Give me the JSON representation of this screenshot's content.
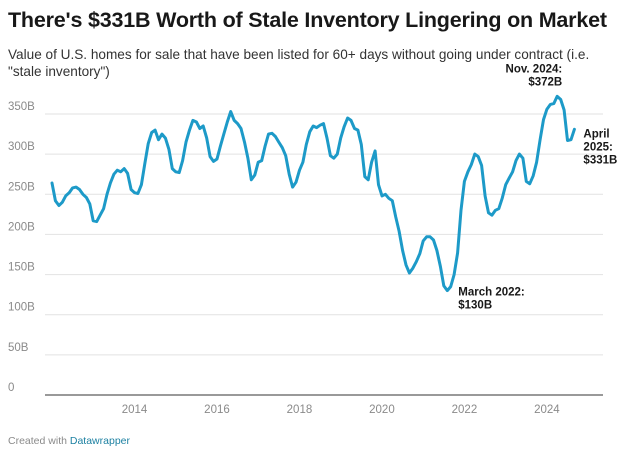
{
  "header": {
    "title": "There's $331B Worth of Stale Inventory Lingering on Market",
    "subtitle": "Value of U.S. homes for sale that have been listed for 60+ days without going under contract (i.e. \"stale inventory\")"
  },
  "footer": {
    "created_with": "Created with",
    "tool": "Datawrapper"
  },
  "chart_data": {
    "type": "line",
    "title": "There's $331B Worth of Stale Inventory Lingering on Market",
    "subtitle": "Value of U.S. homes for sale that have been listed for 60+ days without going under contract (i.e. \"stale inventory\")",
    "xlabel": "",
    "ylabel": "",
    "ylim": [
      0,
      350
    ],
    "xlim": [
      "2012-01",
      "2025-04"
    ],
    "grid": true,
    "legend": "none",
    "line_color": "#1d9ac8",
    "y_ticks": [
      0,
      50,
      100,
      150,
      200,
      250,
      300,
      350
    ],
    "y_tick_labels": [
      "0",
      "50B",
      "100B",
      "150B",
      "200B",
      "250B",
      "300B",
      "350B"
    ],
    "x_ticks": [
      "2014-01",
      "2016-01",
      "2018-01",
      "2020-01",
      "2022-01",
      "2024-01"
    ],
    "x_tick_labels": [
      "2014",
      "2016",
      "2018",
      "2020",
      "2022",
      "2024"
    ],
    "series": [
      {
        "points": [
          [
            "2012-01",
            264
          ],
          [
            "2012-02",
            242
          ],
          [
            "2012-03",
            236
          ],
          [
            "2012-04",
            240
          ],
          [
            "2012-05",
            248
          ],
          [
            "2012-06",
            252
          ],
          [
            "2012-07",
            258
          ],
          [
            "2012-08",
            259
          ],
          [
            "2012-09",
            256
          ],
          [
            "2012-10",
            250
          ],
          [
            "2012-11",
            246
          ],
          [
            "2012-12",
            238
          ],
          [
            "2013-01",
            217
          ],
          [
            "2013-02",
            216
          ],
          [
            "2013-03",
            224
          ],
          [
            "2013-04",
            232
          ],
          [
            "2013-05",
            250
          ],
          [
            "2013-06",
            264
          ],
          [
            "2013-07",
            275
          ],
          [
            "2013-08",
            280
          ],
          [
            "2013-09",
            278
          ],
          [
            "2013-10",
            282
          ],
          [
            "2013-11",
            276
          ],
          [
            "2013-12",
            256
          ],
          [
            "2014-01",
            252
          ],
          [
            "2014-02",
            251
          ],
          [
            "2014-03",
            262
          ],
          [
            "2014-04",
            288
          ],
          [
            "2014-05",
            313
          ],
          [
            "2014-06",
            327
          ],
          [
            "2014-07",
            330
          ],
          [
            "2014-08",
            318
          ],
          [
            "2014-09",
            325
          ],
          [
            "2014-10",
            320
          ],
          [
            "2014-11",
            306
          ],
          [
            "2014-12",
            282
          ],
          [
            "2015-01",
            278
          ],
          [
            "2015-02",
            277
          ],
          [
            "2015-03",
            292
          ],
          [
            "2015-04",
            315
          ],
          [
            "2015-05",
            330
          ],
          [
            "2015-06",
            342
          ],
          [
            "2015-07",
            340
          ],
          [
            "2015-08",
            332
          ],
          [
            "2015-09",
            335
          ],
          [
            "2015-10",
            320
          ],
          [
            "2015-11",
            297
          ],
          [
            "2015-12",
            291
          ],
          [
            "2016-01",
            294
          ],
          [
            "2016-02",
            310
          ],
          [
            "2016-03",
            325
          ],
          [
            "2016-04",
            340
          ],
          [
            "2016-05",
            353
          ],
          [
            "2016-06",
            342
          ],
          [
            "2016-07",
            338
          ],
          [
            "2016-08",
            332
          ],
          [
            "2016-09",
            315
          ],
          [
            "2016-10",
            295
          ],
          [
            "2016-11",
            268
          ],
          [
            "2016-12",
            274
          ],
          [
            "2017-01",
            290
          ],
          [
            "2017-02",
            292
          ],
          [
            "2017-03",
            310
          ],
          [
            "2017-04",
            325
          ],
          [
            "2017-05",
            326
          ],
          [
            "2017-06",
            322
          ],
          [
            "2017-07",
            315
          ],
          [
            "2017-08",
            308
          ],
          [
            "2017-09",
            298
          ],
          [
            "2017-10",
            275
          ],
          [
            "2017-11",
            259
          ],
          [
            "2017-12",
            265
          ],
          [
            "2018-01",
            280
          ],
          [
            "2018-02",
            290
          ],
          [
            "2018-03",
            312
          ],
          [
            "2018-04",
            328
          ],
          [
            "2018-05",
            335
          ],
          [
            "2018-06",
            333
          ],
          [
            "2018-07",
            336
          ],
          [
            "2018-08",
            338
          ],
          [
            "2018-09",
            320
          ],
          [
            "2018-10",
            298
          ],
          [
            "2018-11",
            295
          ],
          [
            "2018-12",
            300
          ],
          [
            "2019-01",
            320
          ],
          [
            "2019-02",
            334
          ],
          [
            "2019-03",
            345
          ],
          [
            "2019-04",
            342
          ],
          [
            "2019-05",
            332
          ],
          [
            "2019-06",
            330
          ],
          [
            "2019-07",
            312
          ],
          [
            "2019-08",
            272
          ],
          [
            "2019-09",
            268
          ],
          [
            "2019-10",
            290
          ],
          [
            "2019-11",
            304
          ],
          [
            "2019-12",
            262
          ],
          [
            "2020-01",
            248
          ],
          [
            "2020-02",
            250
          ],
          [
            "2020-03",
            245
          ],
          [
            "2020-04",
            242
          ],
          [
            "2020-05",
            222
          ],
          [
            "2020-06",
            204
          ],
          [
            "2020-07",
            180
          ],
          [
            "2020-08",
            162
          ],
          [
            "2020-09",
            152
          ],
          [
            "2020-10",
            158
          ],
          [
            "2020-11",
            166
          ],
          [
            "2020-12",
            176
          ],
          [
            "2021-01",
            192
          ],
          [
            "2021-02",
            197
          ],
          [
            "2021-03",
            197
          ],
          [
            "2021-04",
            193
          ],
          [
            "2021-05",
            180
          ],
          [
            "2021-06",
            160
          ],
          [
            "2021-07",
            136
          ],
          [
            "2021-08",
            130
          ],
          [
            "2021-09",
            135
          ],
          [
            "2021-10",
            150
          ],
          [
            "2021-11",
            177
          ],
          [
            "2021-12",
            230
          ],
          [
            "2022-01",
            266
          ],
          [
            "2022-02",
            278
          ],
          [
            "2022-03",
            287
          ],
          [
            "2022-04",
            300
          ],
          [
            "2022-05",
            297
          ],
          [
            "2022-06",
            286
          ],
          [
            "2022-07",
            248
          ],
          [
            "2022-08",
            227
          ],
          [
            "2022-09",
            224
          ],
          [
            "2022-10",
            230
          ],
          [
            "2022-11",
            232
          ],
          [
            "2022-12",
            245
          ],
          [
            "2023-01",
            262
          ],
          [
            "2023-02",
            270
          ],
          [
            "2023-03",
            278
          ],
          [
            "2023-04",
            292
          ],
          [
            "2023-05",
            300
          ],
          [
            "2023-06",
            295
          ],
          [
            "2023-07",
            266
          ],
          [
            "2023-08",
            263
          ],
          [
            "2023-09",
            273
          ],
          [
            "2023-10",
            290
          ],
          [
            "2023-11",
            318
          ],
          [
            "2023-12",
            343
          ],
          [
            "2024-01",
            356
          ],
          [
            "2024-02",
            362
          ],
          [
            "2024-03",
            363
          ],
          [
            "2024-04",
            372
          ],
          [
            "2024-05",
            368
          ],
          [
            "2024-06",
            355
          ],
          [
            "2024-07",
            317
          ],
          [
            "2024-08",
            318
          ],
          [
            "2024-09",
            331
          ]
        ]
      }
    ],
    "annotations": [
      {
        "lines": [
          "Nov. 2024:",
          "$372B"
        ],
        "x": "2024-04",
        "y": 372
      },
      {
        "lines": [
          "April",
          "2025:",
          "$331B"
        ],
        "x": "2024-09",
        "y": 331
      },
      {
        "lines": [
          "March 2022:",
          "$130B"
        ],
        "x": "2021-08",
        "y": 130
      }
    ]
  }
}
